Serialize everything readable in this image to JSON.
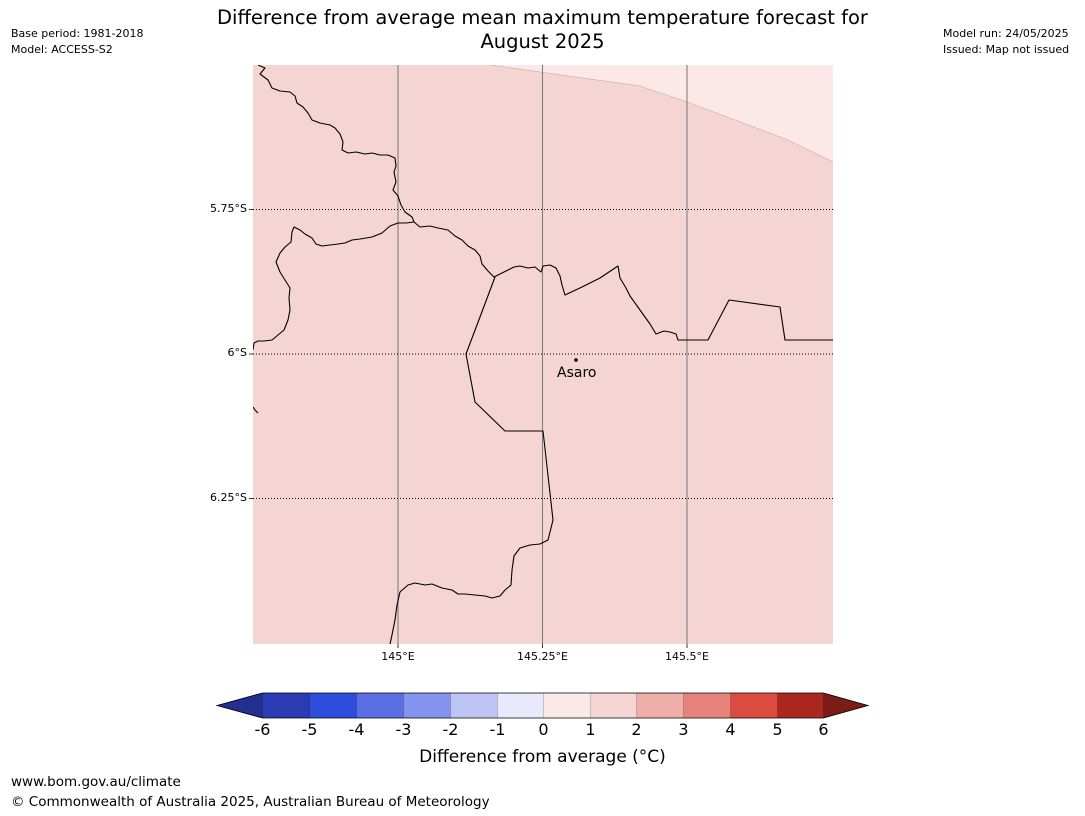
{
  "header": {
    "title_line1": "Difference from average mean maximum temperature forecast for",
    "title_line2": "August 2025",
    "base_period": "Base period: 1981-2018",
    "model": "Model: ACCESS-S2",
    "model_run": "Model run: 24/05/2025",
    "issued": "Issued: Map not issued"
  },
  "map": {
    "latitude_labels": [
      "5.75°S",
      "6°S",
      "6.25°S"
    ],
    "longitude_labels": [
      "145°E",
      "145.25°E",
      "145.5°E"
    ],
    "place": {
      "name": "Asaro"
    },
    "colors": {
      "fill_0_to_1": "#fbe9e7",
      "fill_1_to_2": "#f4d5d3"
    }
  },
  "colorbar": {
    "ticks": [
      "-6",
      "-5",
      "-4",
      "-3",
      "-2",
      "-1",
      "0",
      "1",
      "2",
      "3",
      "4",
      "5",
      "6"
    ],
    "colors": [
      "#222f8f",
      "#2a3bb3",
      "#2f4ddc",
      "#5a6fe3",
      "#8493eb",
      "#bec5f5",
      "#e8eafb",
      "#fbe9e7",
      "#f4d5d3",
      "#eeaea9",
      "#e5837b",
      "#db4b40",
      "#aa2820",
      "#7b1c18"
    ],
    "title": "Difference from average (°C)"
  },
  "footer": {
    "url": "www.bom.gov.au/climate",
    "copyright": "© Commonwealth of Australia 2025, Australian Bureau of Meteorology"
  }
}
